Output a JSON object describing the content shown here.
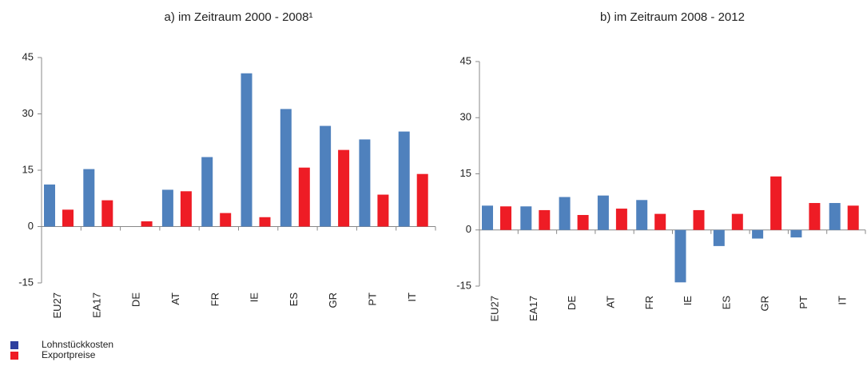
{
  "chart_data": [
    {
      "type": "bar",
      "title": "a) im Zeitraum 2000 - 2008¹",
      "categories": [
        "EU27",
        "EA17",
        "DE",
        "AT",
        "FR",
        "IE",
        "ES",
        "GR",
        "PT",
        "IT"
      ],
      "series": [
        {
          "name": "Lohnstückkosten",
          "color": "#4f81bd",
          "values": [
            11.2,
            15.3,
            0,
            9.8,
            18.5,
            40.8,
            31.3,
            26.8,
            23.2,
            25.3
          ]
        },
        {
          "name": "Exportpreise",
          "color": "#ee1c25",
          "values": [
            4.5,
            7,
            1.4,
            9.4,
            3.6,
            2.5,
            15.7,
            20.4,
            8.5,
            14
          ]
        }
      ],
      "ylim": [
        -15,
        45
      ],
      "yticks": [
        -15,
        0,
        15,
        30,
        45
      ]
    },
    {
      "type": "bar",
      "title": "b) im Zeitraum 2008 - 2012",
      "categories": [
        "EU27",
        "EA17",
        "DE",
        "AT",
        "FR",
        "IE",
        "ES",
        "GR",
        "PT",
        "IT"
      ],
      "series": [
        {
          "color": "#4f81bd",
          "values": [
            6.5,
            6.3,
            8.8,
            9.2,
            8,
            -14,
            -4.3,
            -2.3,
            -2,
            7.2
          ]
        },
        {
          "color": "#ee1c25",
          "values": [
            6.3,
            5.3,
            4,
            5.7,
            4.3,
            5.3,
            4.3,
            14.3,
            7.2,
            6.5
          ]
        }
      ],
      "ylim": [
        -15,
        45
      ],
      "yticks": [
        -15,
        0,
        15,
        30,
        45
      ]
    }
  ]
}
